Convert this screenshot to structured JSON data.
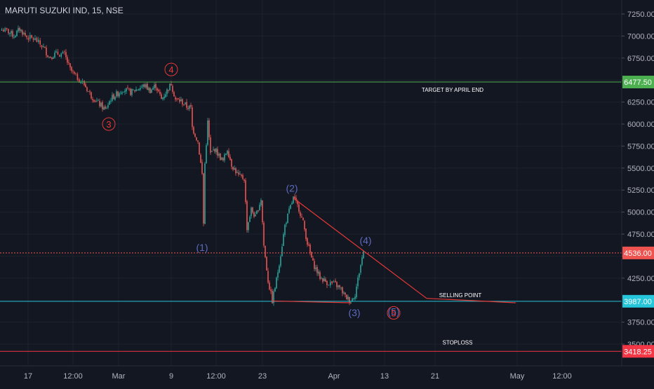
{
  "chart_data": {
    "type": "candlestick",
    "title": "MARUTI SUZUKI IND, 15, NSE",
    "ylim": [
      3300,
      7400
    ],
    "y_ticks": [
      7250,
      7000,
      6750,
      6500,
      6250,
      6000,
      5750,
      5500,
      5250,
      5000,
      4750,
      4500,
      4250,
      3750,
      3500
    ],
    "y_tick_labels": [
      "7250.00",
      "7000.00",
      "6750.00",
      "6500.00",
      "6250.00",
      "6000.00",
      "5750.00",
      "5500.00",
      "5250.00",
      "5000.00",
      "4750.00",
      "4500.00",
      "4250.00",
      "3750.00",
      "3500.00"
    ],
    "x_ticks": [
      "17",
      "12:00",
      "Mar",
      "9",
      "12:00",
      "23",
      "Apr",
      "13",
      "21",
      "May",
      "12:00"
    ],
    "price_path": [
      [
        0,
        7080
      ],
      [
        12,
        7050
      ],
      [
        20,
        7000
      ],
      [
        28,
        7080
      ],
      [
        38,
        6990
      ],
      [
        50,
        6960
      ],
      [
        62,
        6870
      ],
      [
        70,
        6760
      ],
      [
        80,
        6800
      ],
      [
        92,
        6790
      ],
      [
        100,
        6620
      ],
      [
        108,
        6540
      ],
      [
        120,
        6450
      ],
      [
        130,
        6320
      ],
      [
        140,
        6240
      ],
      [
        150,
        6160
      ],
      [
        158,
        6290
      ],
      [
        168,
        6350
      ],
      [
        176,
        6400
      ],
      [
        186,
        6360
      ],
      [
        196,
        6400
      ],
      [
        206,
        6440
      ],
      [
        214,
        6380
      ],
      [
        222,
        6440
      ],
      [
        230,
        6280
      ],
      [
        238,
        6380
      ],
      [
        244,
        6460
      ],
      [
        250,
        6280
      ],
      [
        258,
        6260
      ],
      [
        266,
        6200
      ],
      [
        272,
        6180
      ],
      [
        274,
        5960
      ],
      [
        282,
        5800
      ],
      [
        288,
        5430
      ],
      [
        290,
        4870
      ],
      [
        292,
        5550
      ],
      [
        296,
        6020
      ],
      [
        300,
        5660
      ],
      [
        306,
        5720
      ],
      [
        312,
        5640
      ],
      [
        318,
        5580
      ],
      [
        324,
        5720
      ],
      [
        330,
        5540
      ],
      [
        340,
        5410
      ],
      [
        348,
        5380
      ],
      [
        352,
        4820
      ],
      [
        358,
        5030
      ],
      [
        364,
        4940
      ],
      [
        372,
        5150
      ],
      [
        376,
        4620
      ],
      [
        382,
        4220
      ],
      [
        388,
        3990
      ],
      [
        394,
        4230
      ],
      [
        400,
        4520
      ],
      [
        406,
        4850
      ],
      [
        412,
        5010
      ],
      [
        418,
        5160
      ],
      [
        426,
        5040
      ],
      [
        432,
        4880
      ],
      [
        438,
        4650
      ],
      [
        446,
        4420
      ],
      [
        456,
        4260
      ],
      [
        466,
        4200
      ],
      [
        478,
        4180
      ],
      [
        486,
        4120
      ],
      [
        492,
        4040
      ],
      [
        500,
        3990
      ],
      [
        506,
        4070
      ],
      [
        512,
        4320
      ],
      [
        518,
        4560
      ]
    ],
    "series": [
      {
        "name": "",
        "role": "price-level",
        "value": 6477.5,
        "label": "6477.50",
        "color": "#4caf50",
        "style": "solid",
        "text": "TARGET BY APRIL END"
      },
      {
        "name": "",
        "role": "price-level",
        "value": 4536.0,
        "label": "4536.00",
        "color": "#ef5350",
        "style": "dotted",
        "text": ""
      },
      {
        "name": "",
        "role": "price-level",
        "value": 3987.0,
        "label": "3987.00",
        "color": "#26c6da",
        "style": "solid",
        "text": "SELLING POINT"
      },
      {
        "name": "",
        "role": "price-level",
        "value": 3418.25,
        "label": "3418.25",
        "color": "#f23645",
        "style": "solid",
        "text": "STOPLOSS"
      }
    ],
    "trendlines": [
      {
        "from": [
          418,
          5160
        ],
        "to": [
          608,
          4020
        ],
        "to2": [
          735,
          3970
        ],
        "color": "#e53935"
      },
      {
        "from": [
          388,
          3990
        ],
        "to": [
          500,
          3970
        ],
        "color": "#e53935"
      }
    ],
    "annotations": [
      {
        "text": "3",
        "x": 155,
        "y": 6000,
        "color": "#e53935",
        "circled": true
      },
      {
        "text": "4",
        "x": 244,
        "y": 6620,
        "color": "#e53935",
        "circled": true
      },
      {
        "text": "(1)",
        "x": 288,
        "y": 4600,
        "color": "#5c6bc0",
        "circled": false
      },
      {
        "text": "(2)",
        "x": 416,
        "y": 5270,
        "color": "#5c6bc0",
        "circled": false
      },
      {
        "text": "(4)",
        "x": 521,
        "y": 4680,
        "color": "#5c6bc0",
        "circled": false
      },
      {
        "text": "(3)",
        "x": 505,
        "y": 3860,
        "color": "#5c6bc0",
        "circled": false
      },
      {
        "text": "(5)",
        "x": 561,
        "y": 3870,
        "color": "#5c6bc0",
        "circled": false
      },
      {
        "text": "5",
        "x": 561,
        "y": 3855,
        "color": "#e53935",
        "circled": true
      }
    ]
  }
}
